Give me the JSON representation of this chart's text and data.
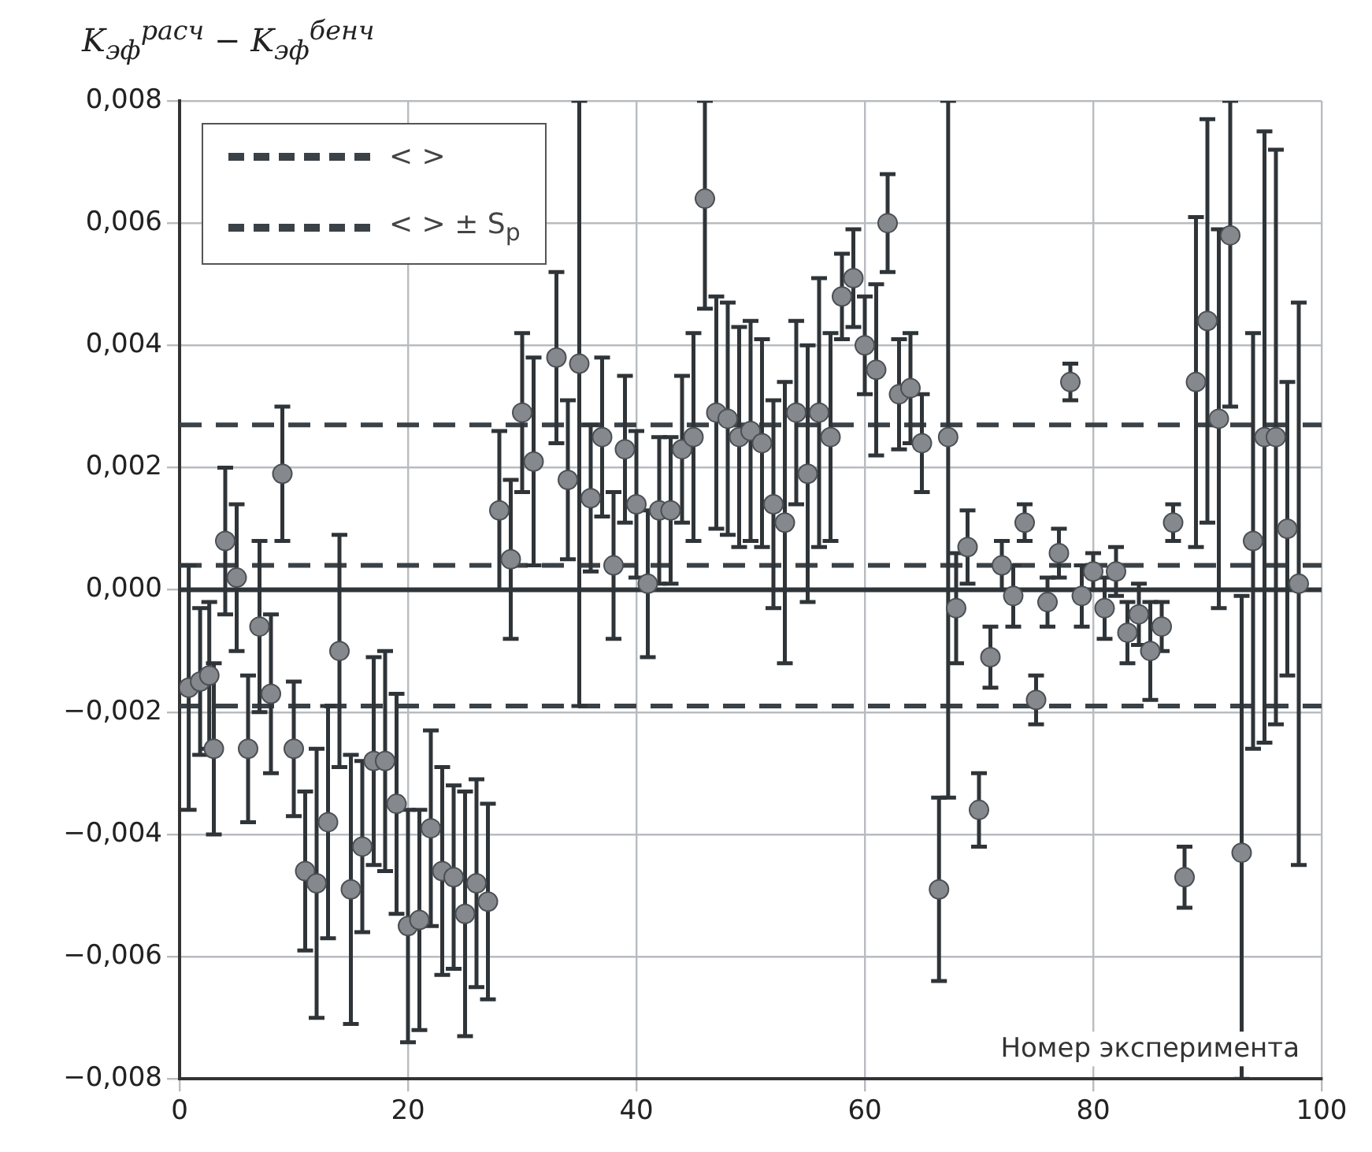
{
  "chart_data": {
    "type": "scatter",
    "ylabel": "K$_{эф}$$^{расч}$ − K$_{эф}$$^{бенч}$",
    "xlabel": "Номер эксперимента",
    "x": [
      0.8,
      1.8,
      2.6,
      3,
      4,
      5,
      6,
      7,
      8,
      9,
      10,
      11,
      12,
      13,
      14,
      15,
      16,
      17,
      18,
      19,
      20,
      21,
      22,
      23,
      24,
      25,
      26,
      27,
      28,
      29,
      30,
      31,
      33,
      34,
      35,
      36,
      37,
      38,
      39,
      40,
      41,
      42,
      43,
      44,
      45,
      46,
      47,
      48,
      49,
      50,
      51,
      52,
      53,
      54,
      55,
      56,
      57,
      58,
      59,
      60,
      61,
      62,
      63,
      64,
      65,
      66.5,
      67.3,
      68,
      69,
      70,
      71,
      72,
      73,
      74,
      75,
      76,
      77,
      78,
      79,
      80,
      81,
      82,
      83,
      84,
      85,
      86,
      87,
      88,
      89,
      90,
      91,
      92,
      93,
      94,
      95,
      96,
      97,
      98
    ],
    "values": [
      -0.0016,
      -0.0015,
      -0.0014,
      -0.0026,
      0.0008,
      0.0002,
      -0.0026,
      -0.0006,
      -0.0017,
      0.0019,
      -0.0026,
      -0.0046,
      -0.0048,
      -0.0038,
      -0.001,
      -0.0049,
      -0.0042,
      -0.0028,
      -0.0028,
      -0.0035,
      -0.0055,
      -0.0054,
      -0.0039,
      -0.0046,
      -0.0047,
      -0.0053,
      -0.0048,
      -0.0051,
      0.0013,
      0.0005,
      0.0029,
      0.0021,
      0.0038,
      0.0018,
      0.0037,
      0.0015,
      0.0025,
      0.0004,
      0.0023,
      0.0014,
      0.0001,
      0.0013,
      0.0013,
      0.0023,
      0.0025,
      0.0064,
      0.0029,
      0.0028,
      0.0025,
      0.0026,
      0.0024,
      0.0014,
      0.0011,
      0.0029,
      0.0019,
      0.0029,
      0.0025,
      0.0048,
      0.0051,
      0.004,
      0.0036,
      0.006,
      0.0032,
      0.0033,
      0.0024,
      -0.0049,
      0.0025,
      -0.0003,
      0.0007,
      -0.0036,
      -0.0011,
      0.0004,
      -0.0001,
      0.0011,
      -0.0018,
      -0.0002,
      0.0006,
      0.0034,
      -0.0001,
      0.0003,
      -0.0003,
      0.0003,
      -0.0007,
      -0.0004,
      -0.001,
      -0.0006,
      0.0011,
      -0.0047,
      0.0034,
      0.0044,
      0.0028,
      0.0058,
      -0.0043,
      0.0008,
      0.0025,
      0.0025,
      0.001,
      0.0001
    ],
    "errors": [
      0.002,
      0.0012,
      0.0012,
      0.0014,
      0.0012,
      0.0012,
      0.0012,
      0.0014,
      0.0013,
      0.0011,
      0.0011,
      0.0013,
      0.0022,
      0.0019,
      0.0019,
      0.0022,
      0.0014,
      0.0017,
      0.0018,
      0.0018,
      0.0019,
      0.0018,
      0.0016,
      0.0017,
      0.0015,
      0.002,
      0.0017,
      0.0016,
      0.0013,
      0.0013,
      0.0013,
      0.0017,
      0.0014,
      0.0013,
      [
        -0.0019,
        0.008
      ],
      0.0012,
      0.0013,
      0.0012,
      0.0012,
      0.0012,
      0.0012,
      0.0012,
      0.0012,
      0.0012,
      0.0017,
      [
        0.0046,
        0.008
      ],
      0.0019,
      0.0019,
      0.0018,
      0.0018,
      0.0017,
      0.0017,
      0.0023,
      0.0015,
      0.0021,
      0.0022,
      0.0017,
      0.0007,
      0.0008,
      0.0008,
      0.0014,
      0.0008,
      0.0009,
      0.0009,
      0.0008,
      0.0015,
      [
        -0.0034,
        0.008
      ],
      0.0009,
      0.0006,
      0.0006,
      0.0005,
      0.0004,
      0.0005,
      0.0003,
      0.0004,
      0.0004,
      0.0004,
      0.0003,
      0.0005,
      0.0003,
      0.0005,
      0.0004,
      0.0005,
      0.0005,
      0.0008,
      0.0004,
      0.0003,
      0.0005,
      0.0027,
      0.0033,
      0.0031,
      [
        0.003,
        0.008
      ],
      [
        -0.008,
        -0.0001
      ],
      0.0034,
      0.005,
      0.0047,
      0.0024,
      0.0046
    ],
    "color": "#85888c",
    "marker": "circle",
    "xlim": [
      0,
      100
    ],
    "xticks": [
      0,
      20,
      40,
      60,
      80,
      100
    ],
    "ylim": [
      -0.008,
      0.008
    ],
    "yticks": [
      {
        "value": -0.008,
        "label": "−0,008"
      },
      {
        "value": -0.006,
        "label": "−0,006"
      },
      {
        "value": -0.004,
        "label": "−0,004"
      },
      {
        "value": -0.002,
        "label": "−0,002"
      },
      {
        "value": 0,
        "label": "0,000"
      },
      {
        "value": 0.002,
        "label": "0,002"
      },
      {
        "value": 0.004,
        "label": "0,004"
      },
      {
        "value": 0.006,
        "label": "0,006"
      },
      {
        "value": 0.008,
        "label": "0,008"
      }
    ],
    "ref_lines": [
      {
        "axis": "y",
        "value": 0,
        "line_style": "solid",
        "color": "#2f3438"
      },
      {
        "axis": "y",
        "value": 0.0004,
        "label": "< >",
        "line_style": "dashed",
        "color": "#3a4147"
      },
      {
        "axis": "y",
        "value": 0.0027,
        "label": "< > ± S$_{p}$",
        "line_style": "dashed",
        "color": "#3a4147"
      },
      {
        "axis": "y",
        "value": -0.0019,
        "line_style": "dashed",
        "color": "#3a4147"
      }
    ],
    "grid": true,
    "legend": "top left"
  }
}
